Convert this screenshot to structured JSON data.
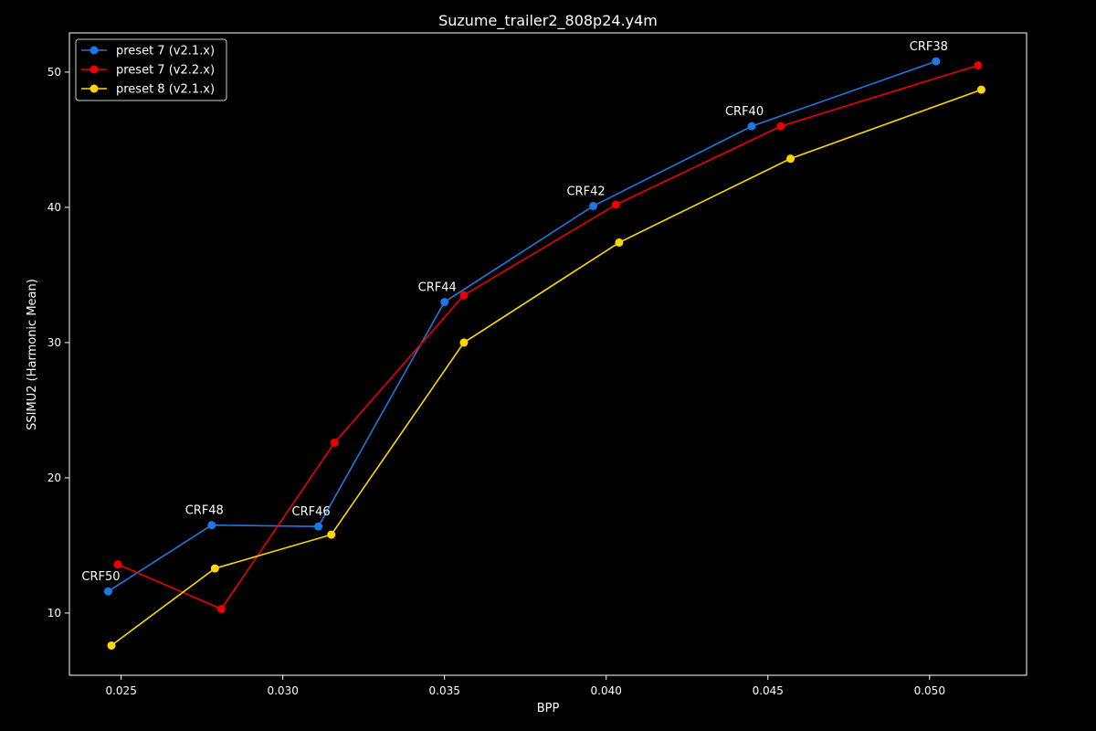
{
  "chart_data": {
    "type": "line",
    "title": "Suzume_trailer2_808p24.y4m",
    "xlabel": "BPP",
    "ylabel": "SSIMU2 (Harmonic Mean)",
    "xlim": [
      0.0234,
      0.053
    ],
    "ylim": [
      5.4,
      52.9
    ],
    "xticks": [
      0.025,
      0.03,
      0.035,
      0.04,
      0.045,
      0.05
    ],
    "xtick_labels": [
      "0.025",
      "0.030",
      "0.035",
      "0.040",
      "0.045",
      "0.050"
    ],
    "yticks": [
      10,
      20,
      30,
      40,
      50
    ],
    "ytick_labels": [
      "10",
      "20",
      "30",
      "40",
      "50"
    ],
    "grid": false,
    "legend_position": "top-left",
    "background": "#000000",
    "foreground": "#ffffff",
    "series": [
      {
        "name": "preset 7 (v2.1.x)",
        "color": "#1f77e4",
        "x": [
          0.0246,
          0.0278,
          0.0311,
          0.035,
          0.0396,
          0.0445,
          0.0502
        ],
        "y": [
          11.6,
          16.5,
          16.4,
          33.0,
          40.1,
          46.0,
          50.8
        ]
      },
      {
        "name": "preset 7 (v2.2.x)",
        "color": "#ee0000",
        "x": [
          0.0249,
          0.0281,
          0.0316,
          0.0356,
          0.0403,
          0.0454,
          0.0515
        ],
        "y": [
          13.6,
          10.3,
          22.6,
          33.5,
          40.2,
          46.0,
          50.5
        ]
      },
      {
        "name": "preset 8 (v2.1.x)",
        "color": "#ffd700",
        "x": [
          0.0247,
          0.0279,
          0.0315,
          0.0356,
          0.0404,
          0.0457,
          0.0516
        ],
        "y": [
          7.6,
          13.3,
          15.8,
          30.0,
          37.4,
          43.6,
          48.7
        ]
      }
    ],
    "annotations": [
      {
        "text": "CRF50",
        "x": 0.0246,
        "y": 11.6
      },
      {
        "text": "CRF48",
        "x": 0.0278,
        "y": 16.5
      },
      {
        "text": "CRF46",
        "x": 0.0311,
        "y": 16.4
      },
      {
        "text": "CRF44",
        "x": 0.035,
        "y": 33.0
      },
      {
        "text": "CRF42",
        "x": 0.0396,
        "y": 40.1
      },
      {
        "text": "CRF40",
        "x": 0.0445,
        "y": 46.0
      },
      {
        "text": "CRF38",
        "x": 0.0502,
        "y": 50.8
      }
    ]
  }
}
